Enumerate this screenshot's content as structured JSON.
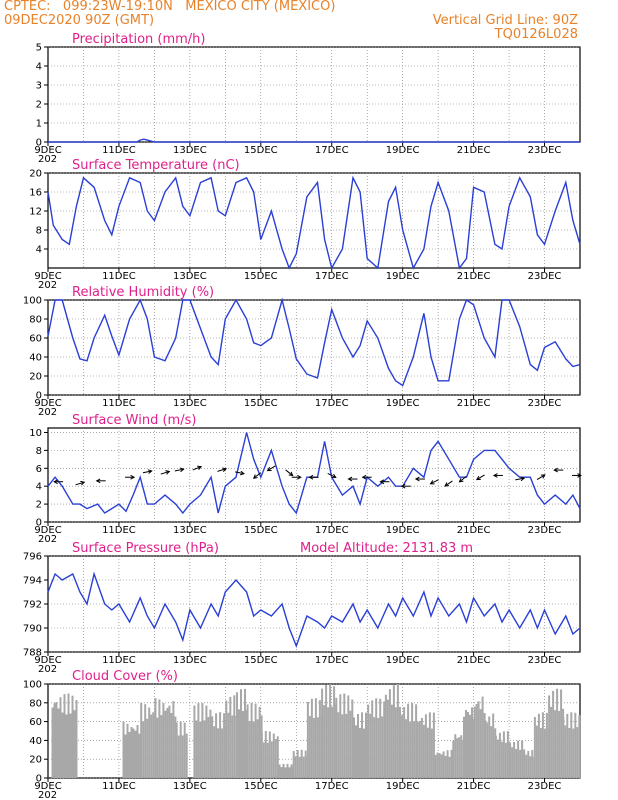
{
  "header": {
    "line1": "CPTEC:   099:23W-19:10N   MEXICO CITY (MEXICO)",
    "line2": "09DEC2020 90Z (GMT)",
    "grid_note": "Vertical Grid Line: 90Z",
    "code": "TQ0126L028"
  },
  "x_labels": [
    "9DEC",
    "11DEC",
    "13DEC",
    "15DEC",
    "17DEC",
    "19DEC",
    "21DEC",
    "23DEC"
  ],
  "x_sub_label": "202",
  "colors": {
    "line": "#2a3fd6",
    "title": "#e0208a",
    "header": "#e8822a",
    "bars": "#a8a8a8"
  },
  "chart_data": [
    {
      "type": "line",
      "title": "Precipitation (mm/h)",
      "ylim": [
        0,
        5
      ],
      "yticks": [
        0,
        1,
        2,
        3,
        4,
        5
      ],
      "x_range": [
        0,
        15
      ],
      "series": [
        {
          "x": [
            0,
            2.5,
            2.6,
            2.7,
            2.8,
            2.9,
            3,
            15
          ],
          "y": [
            0,
            0,
            0.1,
            0.15,
            0.1,
            0.05,
            0,
            0
          ]
        }
      ]
    },
    {
      "type": "line",
      "title": "Surface Temperature (nC)",
      "ylim": [
        0,
        20
      ],
      "yticks": [
        4,
        8,
        12,
        16,
        20
      ],
      "x_range": [
        0,
        15
      ],
      "series": [
        {
          "x": [
            0,
            0.15,
            0.4,
            0.6,
            0.8,
            1.0,
            1.3,
            1.6,
            1.8,
            2.0,
            2.3,
            2.6,
            2.8,
            3.0,
            3.3,
            3.6,
            3.8,
            4.0,
            4.3,
            4.6,
            4.8,
            5.0,
            5.3,
            5.6,
            5.8,
            6.0,
            6.3,
            6.6,
            6.8,
            7.0,
            7.3,
            7.6,
            7.8,
            8.0,
            8.3,
            8.6,
            8.8,
            9.0,
            9.3,
            9.6,
            9.8,
            10.0,
            10.3,
            10.6,
            10.8,
            11.0,
            11.3,
            11.6,
            11.8,
            12.0,
            12.3,
            12.6,
            12.8,
            13.0,
            13.3,
            13.6,
            13.8,
            14.0,
            14.3,
            14.6,
            14.8,
            15.0
          ],
          "y": [
            16,
            9,
            6,
            5,
            13,
            19,
            17,
            10,
            7,
            13,
            19,
            18,
            12,
            10,
            16,
            19,
            13,
            11,
            18,
            19,
            12,
            11,
            18,
            19,
            16,
            6,
            12,
            4,
            0,
            3,
            15,
            18,
            6,
            0,
            4,
            19,
            16,
            2,
            0,
            14,
            17,
            8,
            0,
            4,
            13,
            18,
            12,
            0,
            2,
            17,
            16,
            5,
            4,
            13,
            19,
            15,
            7,
            5,
            12,
            18,
            10,
            5
          ]
        }
      ]
    },
    {
      "type": "line",
      "title": "Relative Humidity (%)",
      "ylim": [
        0,
        100
      ],
      "yticks": [
        0,
        20,
        40,
        60,
        80,
        100
      ],
      "x_range": [
        0,
        15
      ],
      "series": [
        {
          "x": [
            0,
            0.2,
            0.4,
            0.7,
            0.9,
            1.1,
            1.3,
            1.6,
            1.8,
            2.0,
            2.3,
            2.6,
            2.8,
            3.0,
            3.3,
            3.6,
            3.8,
            4.0,
            4.3,
            4.6,
            4.8,
            5.0,
            5.3,
            5.6,
            5.8,
            6.0,
            6.3,
            6.6,
            6.8,
            7.0,
            7.3,
            7.6,
            7.8,
            8.0,
            8.3,
            8.6,
            8.8,
            9.0,
            9.3,
            9.6,
            9.8,
            10.0,
            10.3,
            10.6,
            10.8,
            11.0,
            11.3,
            11.6,
            11.8,
            12.0,
            12.3,
            12.6,
            12.8,
            13.0,
            13.3,
            13.6,
            13.8,
            14.0,
            14.3,
            14.6,
            14.8,
            15.0
          ],
          "y": [
            62,
            100,
            100,
            60,
            38,
            36,
            60,
            84,
            62,
            42,
            80,
            100,
            80,
            40,
            36,
            60,
            100,
            100,
            70,
            40,
            32,
            80,
            100,
            80,
            55,
            52,
            60,
            100,
            70,
            38,
            22,
            18,
            55,
            90,
            60,
            40,
            52,
            78,
            60,
            28,
            15,
            10,
            40,
            86,
            40,
            15,
            15,
            80,
            100,
            95,
            60,
            40,
            100,
            100,
            72,
            32,
            26,
            50,
            56,
            38,
            30,
            32
          ]
        }
      ]
    },
    {
      "type": "line",
      "title": "Surface Wind (m/s)",
      "ylim": [
        0,
        10.5
      ],
      "yticks": [
        0,
        2,
        4,
        6,
        8,
        10
      ],
      "x_range": [
        0,
        15
      ],
      "series": [
        {
          "x": [
            0,
            0.2,
            0.4,
            0.7,
            0.9,
            1.1,
            1.4,
            1.6,
            1.8,
            2.0,
            2.2,
            2.4,
            2.6,
            2.8,
            3.0,
            3.3,
            3.6,
            3.8,
            4.0,
            4.3,
            4.6,
            4.8,
            5.0,
            5.3,
            5.6,
            5.8,
            6.0,
            6.3,
            6.6,
            6.8,
            7.0,
            7.3,
            7.6,
            7.8,
            8.0,
            8.3,
            8.6,
            8.8,
            9.0,
            9.3,
            9.6,
            9.8,
            10.0,
            10.3,
            10.6,
            10.8,
            11.0,
            11.3,
            11.6,
            11.8,
            12.0,
            12.3,
            12.6,
            12.8,
            13.0,
            13.3,
            13.6,
            13.8,
            14.0,
            14.3,
            14.6,
            14.8,
            15.0
          ],
          "y": [
            4,
            5,
            4,
            2,
            2,
            1.5,
            2,
            1,
            1.5,
            2,
            1.2,
            3,
            5,
            2,
            2,
            3,
            2,
            1,
            2,
            3,
            5,
            1,
            4,
            5,
            10,
            7,
            5,
            8,
            4,
            2,
            1,
            5,
            5,
            9,
            5,
            3,
            4,
            2,
            5,
            4,
            5,
            4,
            4,
            6,
            5,
            8,
            9,
            7,
            5,
            5,
            7,
            8,
            8,
            7,
            6,
            5,
            5,
            3,
            2,
            3,
            2,
            3,
            1.5
          ]
        }
      ],
      "arrows_x": [
        0.3,
        0.9,
        1.5,
        2.3,
        2.8,
        3.3,
        3.7,
        4.2,
        4.9,
        5.4,
        5.9,
        6.3,
        6.8,
        7.0,
        7.5,
        8.0,
        8.6,
        9.0,
        9.5,
        10.1,
        10.5,
        10.9,
        11.3,
        11.7,
        12.2,
        12.7,
        13.3,
        13.9,
        14.4,
        14.9
      ],
      "arrows_y": [
        4.5,
        4.3,
        4.6,
        5.0,
        5.6,
        5.5,
        5.8,
        6.0,
        5.8,
        5.5,
        5.2,
        6.0,
        5.5,
        5.0,
        5.0,
        5.2,
        4.8,
        5.0,
        4.5,
        4.0,
        4.8,
        4.5,
        4.3,
        4.8,
        5.0,
        5.2,
        4.8,
        5.0,
        5.8,
        5.2
      ],
      "arrows_dx": [
        -1,
        1,
        -1,
        1,
        1,
        1,
        1,
        1,
        1,
        1,
        -1,
        -1,
        1,
        1,
        -1,
        1,
        -1,
        -1,
        -1,
        -1,
        -1,
        -1,
        -1,
        -1,
        -1,
        -1,
        1,
        1,
        -1,
        1
      ],
      "arrows_dy": [
        0,
        0.3,
        0,
        0,
        0.2,
        0.3,
        0.2,
        0.4,
        0.3,
        -0.2,
        -0.8,
        -0.6,
        -0.8,
        0,
        0,
        -0.5,
        0,
        0,
        0,
        0,
        0,
        -0.5,
        -0.7,
        -0.8,
        -0.6,
        0,
        0.2,
        0.6,
        0,
        0
      ]
    },
    {
      "type": "line",
      "title": "Surface Pressure (hPa)",
      "subtitle": "Model Altitude: 2131.83 m",
      "ylim": [
        788,
        796
      ],
      "yticks": [
        788,
        790,
        792,
        794,
        796
      ],
      "x_range": [
        0,
        15
      ],
      "series": [
        {
          "x": [
            0,
            0.2,
            0.4,
            0.7,
            0.9,
            1.1,
            1.3,
            1.6,
            1.8,
            2.0,
            2.3,
            2.6,
            2.8,
            3.0,
            3.3,
            3.6,
            3.8,
            4.0,
            4.3,
            4.6,
            4.8,
            5.0,
            5.3,
            5.6,
            5.8,
            6.0,
            6.3,
            6.6,
            6.8,
            7.0,
            7.3,
            7.6,
            7.8,
            8.0,
            8.3,
            8.6,
            8.8,
            9.0,
            9.3,
            9.6,
            9.8,
            10.0,
            10.3,
            10.6,
            10.8,
            11.0,
            11.3,
            11.6,
            11.8,
            12.0,
            12.3,
            12.6,
            12.8,
            13.0,
            13.3,
            13.6,
            13.8,
            14.0,
            14.3,
            14.6,
            14.8,
            15.0
          ],
          "y": [
            793,
            794.5,
            794,
            794.5,
            793,
            792,
            794.5,
            792,
            791.5,
            792,
            790.5,
            792.5,
            791,
            790,
            792,
            790.5,
            789,
            791.5,
            790,
            792,
            791,
            793,
            794,
            793,
            791,
            791.5,
            791,
            792,
            790,
            788.5,
            791,
            790.5,
            790,
            791,
            790.5,
            792,
            790.5,
            791.5,
            790,
            792,
            791,
            792.5,
            791,
            793,
            791,
            792.5,
            791,
            792,
            790.5,
            792.5,
            791,
            792,
            790.5,
            791.5,
            790,
            791.5,
            790,
            791.5,
            789.5,
            791,
            789.5,
            790
          ]
        }
      ]
    },
    {
      "type": "bar",
      "title": "Cloud Cover (%)",
      "ylim": [
        0,
        100
      ],
      "yticks": [
        0,
        20,
        40,
        60,
        80,
        100
      ],
      "x_range": [
        0,
        15
      ],
      "blocks": [
        [
          0.1,
          0.8,
          90
        ],
        [
          2.1,
          2.6,
          60
        ],
        [
          2.6,
          3.0,
          80
        ],
        [
          3.0,
          3.6,
          85
        ],
        [
          3.6,
          3.9,
          60
        ],
        [
          4.1,
          4.6,
          80
        ],
        [
          4.6,
          5.0,
          70
        ],
        [
          5.0,
          5.3,
          88
        ],
        [
          5.3,
          5.6,
          95
        ],
        [
          5.6,
          6.0,
          80
        ],
        [
          6.0,
          6.5,
          50
        ],
        [
          6.5,
          6.9,
          15
        ],
        [
          6.9,
          7.3,
          30
        ],
        [
          7.3,
          7.7,
          85
        ],
        [
          7.7,
          8.1,
          100
        ],
        [
          8.1,
          8.6,
          90
        ],
        [
          8.6,
          9.0,
          70
        ],
        [
          9.0,
          9.5,
          85
        ],
        [
          9.5,
          9.9,
          100
        ],
        [
          9.9,
          10.4,
          80
        ],
        [
          10.4,
          10.9,
          70
        ],
        [
          10.9,
          11.4,
          30
        ],
        [
          11.4,
          11.7,
          50
        ],
        [
          11.7,
          12.0,
          80
        ],
        [
          12.0,
          12.3,
          90
        ],
        [
          12.3,
          12.6,
          70
        ],
        [
          12.6,
          13.0,
          50
        ],
        [
          13.0,
          13.4,
          40
        ],
        [
          13.4,
          13.7,
          30
        ],
        [
          13.7,
          14.1,
          70
        ],
        [
          14.1,
          14.5,
          95
        ],
        [
          14.5,
          15.0,
          70
        ]
      ]
    }
  ]
}
